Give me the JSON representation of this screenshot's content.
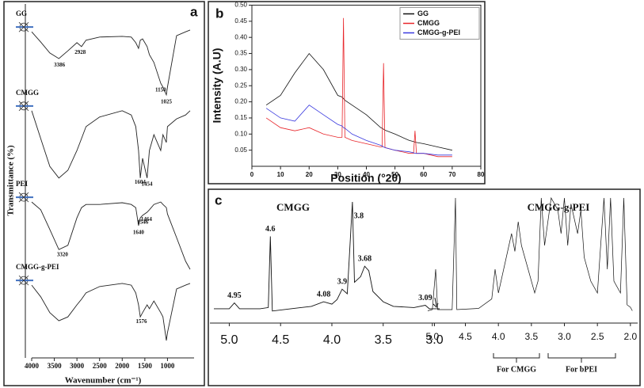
{
  "chart_data": [
    {
      "type": "line",
      "panel": "a",
      "xlabel": "Wavenumber (cm⁻¹)",
      "ylabel": "Transmittance (%)",
      "xlim": [
        4000,
        500
      ],
      "ylim": [
        0,
        100
      ],
      "xticks": [
        4000,
        3500,
        3000,
        2500,
        2000,
        1500,
        1000
      ],
      "x": [
        4000,
        3800,
        3600,
        3400,
        3200,
        3000,
        2900,
        2800,
        2500,
        2000,
        1800,
        1700,
        1640,
        1600,
        1550,
        1450,
        1400,
        1300,
        1150,
        1100,
        1025,
        1000,
        800,
        600,
        500
      ],
      "series": [
        {
          "name": "GG",
          "color": "#222222",
          "values": [
            92.1,
            89.2,
            86.1,
            84.5,
            86.7,
            89.0,
            87.9,
            89.7,
            90.6,
            90.8,
            90.6,
            89.0,
            87.4,
            89.7,
            90.1,
            87.9,
            85.6,
            83.4,
            77.5,
            76.4,
            74.2,
            76.4,
            91.0,
            92.1,
            92.6
          ],
          "peaks": [
            3386,
            2928,
            1150,
            1025
          ]
        },
        {
          "name": "CMGG",
          "color": "#222222",
          "values": [
            69.7,
            61.8,
            53.9,
            50.6,
            52.8,
            58.4,
            61.8,
            65.2,
            67.9,
            69.7,
            68.5,
            65.2,
            58.4,
            50.6,
            56.2,
            50.6,
            58.4,
            62.9,
            58.4,
            62.9,
            60.7,
            65.2,
            67.4,
            68.5,
            69.7
          ],
          "peaks": [
            1604,
            1454
          ]
        },
        {
          "name": "PEI",
          "color": "#222222",
          "values": [
            43.8,
            41.6,
            36.0,
            30.3,
            31.5,
            39.3,
            42.2,
            43.1,
            43.1,
            43.6,
            43.1,
            42.2,
            37.1,
            39.3,
            40.0,
            40.9,
            41.6,
            43.1,
            43.8,
            43.1,
            42.2,
            40.4,
            33.7,
            27.0,
            24.7
          ],
          "peaks": [
            3320,
            1640,
            1546,
            1464
          ]
        },
        {
          "name": "CMGG-g-PEI",
          "color": "#222222",
          "values": [
            20.2,
            16.9,
            12.4,
            10.1,
            11.2,
            14.6,
            16.2,
            18.0,
            19.8,
            20.7,
            20.2,
            18.0,
            14.6,
            11.2,
            12.4,
            14.6,
            13.5,
            15.7,
            12.4,
            11.2,
            4.5,
            6.7,
            19.1,
            20.2,
            20.7
          ],
          "peaks": [
            1576
          ]
        }
      ]
    },
    {
      "type": "line",
      "panel": "b",
      "xlabel": "Position (°2θ)",
      "ylabel": "Intensity (A.U)",
      "legend": "upper right",
      "xlim": [
        0,
        80
      ],
      "ylim": [
        0,
        0.5
      ],
      "xticks": [
        0,
        10,
        20,
        30,
        40,
        50,
        60,
        70,
        80
      ],
      "yticks": [
        0.05,
        {
          "value": 0.1,
          "label": "0.10"
        },
        0.15,
        {
          "value": 0.2,
          "label": "0.20"
        },
        0.25,
        {
          "value": 0.3,
          "label": "0.30"
        },
        0.35,
        {
          "value": 0.4,
          "label": "0.40"
        },
        0.45,
        {
          "value": 0.5,
          "label": "0.50"
        }
      ],
      "x": [
        5,
        10,
        15,
        20,
        25,
        30,
        31.5,
        32,
        32.5,
        35,
        40,
        45,
        45.5,
        46,
        46.5,
        50,
        55,
        56.5,
        57,
        57.5,
        60,
        65,
        70
      ],
      "series": [
        {
          "name": "GG",
          "color": "#111111",
          "values": [
            0.19,
            0.22,
            0.29,
            0.35,
            0.3,
            0.22,
            0.215,
            0.21,
            0.205,
            0.19,
            0.16,
            0.12,
            0.118,
            0.115,
            0.112,
            0.1,
            0.08,
            0.077,
            0.075,
            0.074,
            0.07,
            0.06,
            0.05
          ]
        },
        {
          "name": "CMGG",
          "color": "#e8262b",
          "values": [
            0.15,
            0.12,
            0.11,
            0.12,
            0.1,
            0.09,
            0.09,
            0.46,
            0.09,
            0.08,
            0.07,
            0.06,
            0.06,
            0.32,
            0.058,
            0.05,
            0.04,
            0.04,
            0.11,
            0.04,
            0.04,
            0.03,
            0.03
          ]
        },
        {
          "name": "CMGG-g-PEI",
          "color": "#3a3adf",
          "values": [
            0.18,
            0.15,
            0.14,
            0.19,
            0.16,
            0.13,
            0.125,
            0.12,
            0.118,
            0.1,
            0.08,
            0.065,
            0.063,
            0.06,
            0.058,
            0.05,
            0.045,
            0.042,
            0.04,
            0.04,
            0.04,
            0.035,
            0.035
          ]
        }
      ]
    },
    {
      "type": "line",
      "panel": "c",
      "title": "CMGG",
      "xlim": [
        5.15,
        2.95
      ],
      "ylim": [
        0,
        100
      ],
      "xticks": [
        {
          "value": 5,
          "label": "5.0"
        },
        4.5,
        {
          "value": 4,
          "label": "4.0"
        },
        3.5,
        {
          "value": 3,
          "label": "3.0"
        }
      ],
      "x": [
        5.15,
        5.0,
        4.95,
        4.9,
        4.7,
        4.62,
        4.6,
        4.58,
        4.4,
        4.2,
        4.08,
        4.0,
        3.95,
        3.9,
        3.85,
        3.8,
        3.78,
        3.72,
        3.68,
        3.64,
        3.6,
        3.5,
        3.4,
        3.2,
        3.09,
        3.05,
        2.95
      ],
      "series": [
        {
          "name": "CMGG",
          "color": "#111111",
          "values": [
            7,
            7,
            12,
            7,
            7,
            8,
            70,
            5,
            7,
            9,
            13,
            11,
            15,
            24,
            20,
            100,
            30,
            35,
            44,
            40,
            22,
            13,
            9,
            8,
            10,
            7,
            7
          ],
          "peaks": [
            4.95,
            4.6,
            4.08,
            3.9,
            3.8,
            3.68,
            3.09
          ]
        }
      ]
    },
    {
      "type": "line",
      "title": "CMGG-g-PEI",
      "annotations": [
        "For CMGG",
        "For bPEI"
      ],
      "xlim": [
        5.07,
        1.95
      ],
      "ylim": [
        0,
        100
      ],
      "xticks": [
        {
          "value": 5,
          "label": "5.0"
        },
        4.5,
        {
          "value": 4,
          "label": "4.0"
        },
        3.5,
        {
          "value": 3,
          "label": "3.0"
        },
        2.5,
        {
          "value": 2,
          "label": "2.0"
        }
      ],
      "x": [
        5.07,
        5.0,
        4.95,
        4.92,
        4.7,
        4.65,
        4.63,
        4.3,
        4.1,
        4.05,
        4.0,
        3.9,
        3.8,
        3.75,
        3.7,
        3.65,
        3.55,
        3.45,
        3.4,
        3.35,
        3.3,
        3.2,
        3.1,
        3.05,
        3.0,
        2.95,
        2.9,
        2.8,
        2.75,
        2.7,
        2.6,
        2.5,
        2.45,
        2.4,
        2.35,
        2.3,
        2.25,
        2.15,
        2.1,
        2.05,
        2.0,
        1.97
      ],
      "series": [
        {
          "name": "CMGG-g-PEI",
          "color": "#111111",
          "values": [
            5,
            6,
            40,
            6,
            6,
            100,
            6,
            7,
            15,
            40,
            20,
            45,
            70,
            55,
            80,
            60,
            40,
            20,
            30,
            100,
            60,
            100,
            90,
            70,
            100,
            60,
            95,
            70,
            90,
            50,
            30,
            20,
            60,
            100,
            40,
            100,
            30,
            20,
            100,
            10,
            8,
            5
          ]
        }
      ]
    }
  ]
}
